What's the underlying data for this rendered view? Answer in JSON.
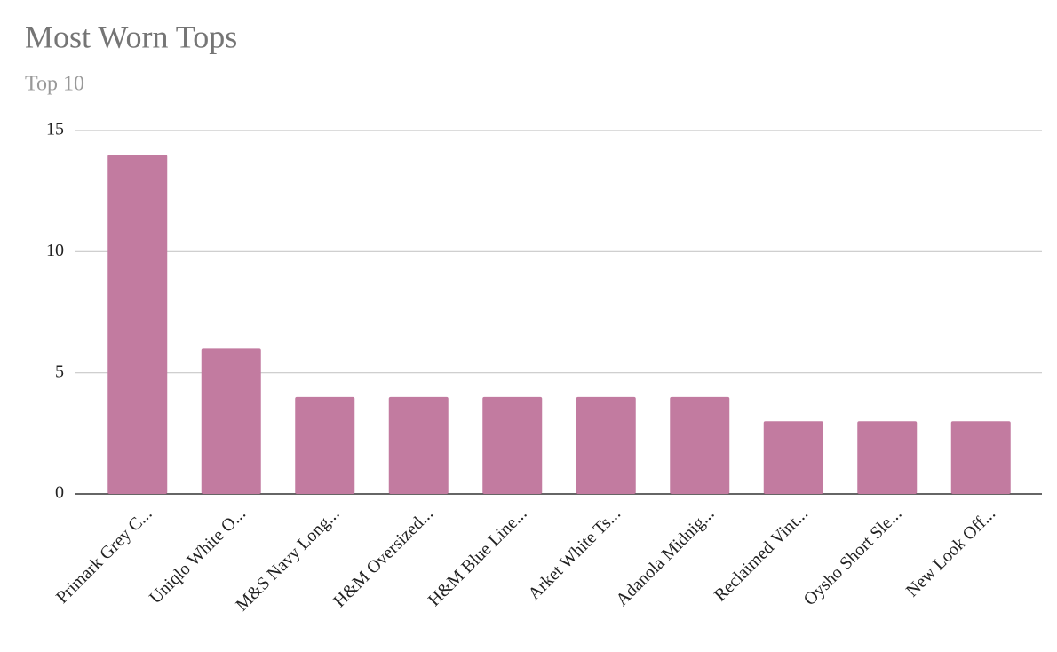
{
  "chart_data": {
    "type": "bar",
    "title": "Most Worn Tops",
    "subtitle": "Top 10",
    "categories": [
      "Primark Grey C...",
      "Uniqlo White O...",
      "M&S Navy Long...",
      "H&M Oversized...",
      "H&M Blue Line...",
      "Arket White Ts...",
      "Adanola Midnig...",
      "Reclaimed Vint...",
      "Oysho Short Sle...",
      "New Look Off..."
    ],
    "values": [
      14,
      6,
      4,
      4,
      4,
      4,
      4,
      3,
      3,
      3
    ],
    "color": "#c27ba0",
    "ylim": [
      0,
      15
    ],
    "yticks": [
      0,
      5,
      10,
      15
    ],
    "grid": true
  }
}
